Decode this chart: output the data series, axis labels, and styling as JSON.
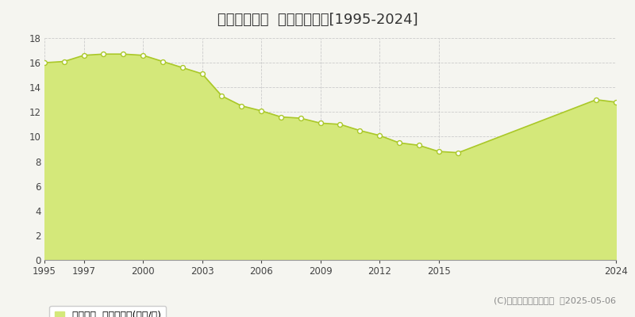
{
  "title": "宇部市東須恵  公示地価推移[1995-2024]",
  "years": [
    1995,
    1996,
    1997,
    1998,
    1999,
    2000,
    2001,
    2002,
    2003,
    2004,
    2005,
    2006,
    2007,
    2008,
    2009,
    2010,
    2011,
    2012,
    2013,
    2014,
    2015,
    2016,
    2023,
    2024
  ],
  "values": [
    16.0,
    16.1,
    16.6,
    16.7,
    16.7,
    16.6,
    16.1,
    15.6,
    15.1,
    13.3,
    12.5,
    12.1,
    11.6,
    11.5,
    11.1,
    11.0,
    10.5,
    10.1,
    9.5,
    9.3,
    8.8,
    8.7,
    13.0,
    12.8
  ],
  "line_color": "#aac828",
  "fill_color": "#d4e87a",
  "marker_facecolor": "#ffffff",
  "marker_edgecolor": "#aac828",
  "bg_color": "#f5f5f0",
  "plot_bg_color": "#f5f5f0",
  "grid_color": "#cccccc",
  "ylim": [
    0,
    18
  ],
  "yticks": [
    0,
    2,
    4,
    6,
    8,
    10,
    12,
    14,
    16,
    18
  ],
  "xtick_years": [
    1995,
    1997,
    2000,
    2003,
    2006,
    2009,
    2012,
    2015,
    2024
  ],
  "legend_label": "公示地価  平均嵪単価(万円/嵪)",
  "copyright": "(C)土地価格ドットコム  ゠2025-05-06",
  "title_fontsize": 13,
  "tick_fontsize": 8.5,
  "legend_fontsize": 9,
  "copyright_fontsize": 8
}
